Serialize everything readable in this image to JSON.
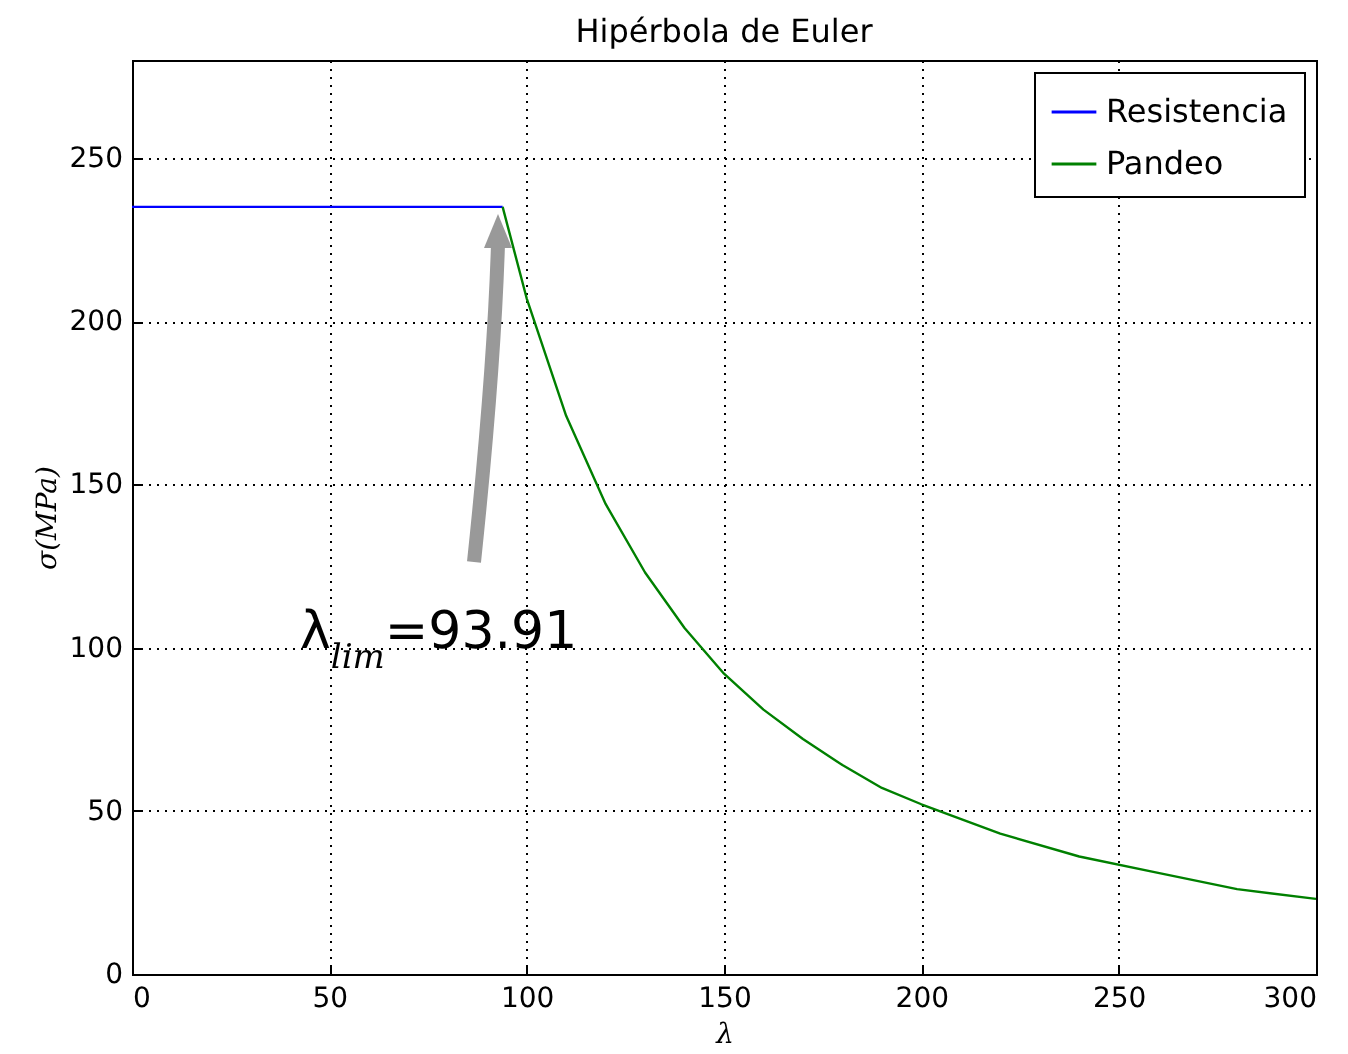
{
  "chart_data": {
    "type": "line",
    "title": "Hipérbola de Euler",
    "xlabel": "λ",
    "ylabel": "σ(MPa)",
    "xlim": [
      0,
      300
    ],
    "ylim": [
      0,
      280
    ],
    "xticks": [
      0,
      50,
      100,
      150,
      200,
      250,
      300
    ],
    "yticks": [
      0,
      50,
      100,
      150,
      200,
      250
    ],
    "grid": true,
    "legend": "top right",
    "line_style": "solid",
    "series": [
      {
        "name": "Resistencia",
        "color": "#0000ff",
        "x": [
          0,
          93.91
        ],
        "values": [
          235,
          235
        ]
      },
      {
        "name": "Pandeo",
        "color": "#008000",
        "x": [
          93.91,
          100,
          110,
          120,
          130,
          140,
          150,
          160,
          170,
          180,
          190,
          200,
          220,
          240,
          260,
          280,
          300
        ],
        "values": [
          235,
          207,
          171,
          144,
          123,
          106,
          92,
          81,
          72,
          64,
          57,
          52,
          43,
          36,
          31,
          26,
          23
        ]
      }
    ],
    "annotations": [
      "λ$_{lim}$=93.91"
    ]
  }
}
